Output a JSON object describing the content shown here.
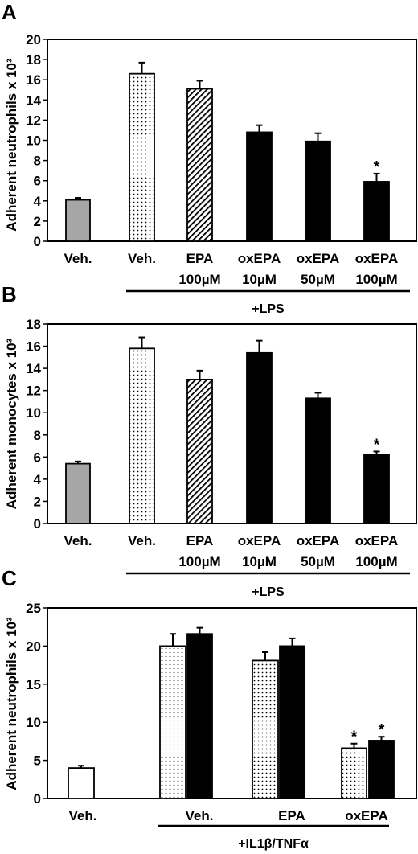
{
  "chart_data": [
    {
      "type": "bar",
      "panel": "A",
      "ylabel": "Adherent neutrophils x 10³",
      "ylim": [
        0,
        20
      ],
      "yticks": [
        0,
        2,
        4,
        6,
        8,
        10,
        12,
        14,
        16,
        18,
        20
      ],
      "group_label": "+LPS",
      "bars": [
        {
          "line1": "Veh.",
          "line2": "",
          "value": 4.1,
          "error": 0.2,
          "pattern": "gray",
          "star": ""
        },
        {
          "line1": "Veh.",
          "line2": "",
          "value": 16.6,
          "error": 1.1,
          "pattern": "dots",
          "star": ""
        },
        {
          "line1": "EPA",
          "line2": "100µM",
          "value": 15.1,
          "error": 0.8,
          "pattern": "hatch",
          "star": ""
        },
        {
          "line1": "oxEPA",
          "line2": "10µM",
          "value": 10.8,
          "error": 0.7,
          "pattern": "black",
          "star": ""
        },
        {
          "line1": "oxEPA",
          "line2": "50µM",
          "value": 9.9,
          "error": 0.8,
          "pattern": "black",
          "star": ""
        },
        {
          "line1": "oxEPA",
          "line2": "100µM",
          "value": 5.9,
          "error": 0.8,
          "pattern": "black",
          "star": "*"
        }
      ]
    },
    {
      "type": "bar",
      "panel": "B",
      "ylabel": "Adherent monocytes x 10³",
      "ylim": [
        0,
        18
      ],
      "yticks": [
        0,
        2,
        4,
        6,
        8,
        10,
        12,
        14,
        16,
        18
      ],
      "group_label": "+LPS",
      "bars": [
        {
          "line1": "Veh.",
          "line2": "",
          "value": 5.4,
          "error": 0.2,
          "pattern": "gray",
          "star": ""
        },
        {
          "line1": "Veh.",
          "line2": "",
          "value": 15.8,
          "error": 1.0,
          "pattern": "dots",
          "star": ""
        },
        {
          "line1": "EPA",
          "line2": "100µM",
          "value": 13.0,
          "error": 0.8,
          "pattern": "hatch",
          "star": ""
        },
        {
          "line1": "oxEPA",
          "line2": "10µM",
          "value": 15.4,
          "error": 1.1,
          "pattern": "black",
          "star": ""
        },
        {
          "line1": "oxEPA",
          "line2": "50µM",
          "value": 11.3,
          "error": 0.5,
          "pattern": "black",
          "star": ""
        },
        {
          "line1": "oxEPA",
          "line2": "100µM",
          "value": 6.2,
          "error": 0.3,
          "pattern": "black",
          "star": "*"
        }
      ]
    },
    {
      "type": "bar",
      "panel": "C",
      "ylabel": "Adherent neutrophils x 10³",
      "ylim": [
        0,
        25
      ],
      "yticks": [
        0,
        5,
        10,
        15,
        20,
        25
      ],
      "group_label": "+IL1β/TNFα",
      "groups": [
        {
          "label": "Veh.",
          "bars": [
            {
              "value": 4.0,
              "error": 0.3,
              "pattern": "white",
              "star": ""
            }
          ]
        },
        {
          "label": "Veh.",
          "bars": [
            {
              "value": 20.0,
              "error": 1.6,
              "pattern": "dots",
              "star": ""
            },
            {
              "value": 21.6,
              "error": 0.8,
              "pattern": "black",
              "star": ""
            }
          ]
        },
        {
          "label": "EPA",
          "bars": [
            {
              "value": 18.1,
              "error": 1.1,
              "pattern": "dots",
              "star": ""
            },
            {
              "value": 20.0,
              "error": 1.0,
              "pattern": "black",
              "star": ""
            }
          ]
        },
        {
          "label": "oxEPA",
          "bars": [
            {
              "value": 6.6,
              "error": 0.6,
              "pattern": "dots",
              "star": "*"
            },
            {
              "value": 7.6,
              "error": 0.5,
              "pattern": "black",
              "star": "*"
            }
          ]
        }
      ]
    }
  ]
}
